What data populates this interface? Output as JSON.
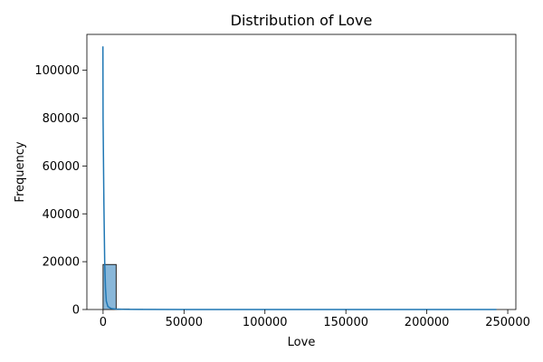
{
  "chart_data": {
    "type": "histogram",
    "title": "Distribution of Love",
    "xlabel": "Love",
    "ylabel": "Frequency",
    "xlim": [
      -10000,
      255000
    ],
    "ylim": [
      0,
      115000
    ],
    "x_ticks": [
      0,
      50000,
      100000,
      150000,
      200000,
      250000
    ],
    "x_tick_labels": [
      "0",
      "50000",
      "100000",
      "150000",
      "200000",
      "250000"
    ],
    "y_ticks": [
      0,
      20000,
      40000,
      60000,
      80000,
      100000
    ],
    "y_tick_labels": [
      "0",
      "20000",
      "40000",
      "60000",
      "80000",
      "100000"
    ],
    "bins": [
      {
        "x0": 0,
        "x1": 8100,
        "count": 18800
      },
      {
        "x0": 8100,
        "x1": 16200,
        "count": 200
      },
      {
        "x0": 16200,
        "x1": 24300,
        "count": 50
      },
      {
        "x0": 24300,
        "x1": 32400,
        "count": 20
      },
      {
        "x0": 32400,
        "x1": 40500,
        "count": 10
      },
      {
        "x0": 40500,
        "x1": 48600,
        "count": 5
      }
    ],
    "kde": {
      "x": [
        -100,
        0,
        500,
        1000,
        1500,
        2000,
        3000,
        5000,
        8000,
        12000,
        20000,
        50000,
        100000,
        150000,
        200000,
        243000
      ],
      "y": [
        110000,
        80000,
        45000,
        20000,
        9000,
        3500,
        1200,
        400,
        200,
        100,
        50,
        20,
        10,
        5,
        2,
        0
      ]
    },
    "colors": {
      "bar_fill": "#89b7d9",
      "bar_edge": "#222222",
      "kde_line": "#1f77b4"
    },
    "grid": false,
    "legend": false
  }
}
